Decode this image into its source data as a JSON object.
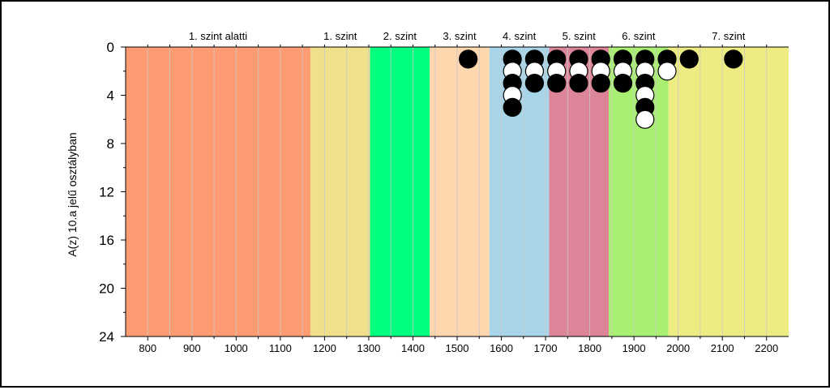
{
  "chart_data": {
    "type": "scatter",
    "ylabel": "A(z) 10.a jelű osztályban",
    "xlim": [
      750,
      2250
    ],
    "ylim": [
      0,
      24
    ],
    "y_inverted": true,
    "x_ticks": [
      "800",
      "900",
      "1000",
      "1100",
      "1200",
      "1300",
      "1400",
      "1500",
      "1600",
      "1700",
      "1800",
      "1900",
      "2000",
      "2100",
      "2200"
    ],
    "y_ticks": [
      "0",
      "4",
      "8",
      "12",
      "16",
      "20",
      "24"
    ],
    "levels": [
      {
        "label": "1. szint alatti",
        "from": 750,
        "to": 1168,
        "color": "#ff9b72"
      },
      {
        "label": "1. szint",
        "from": 1168,
        "to": 1303,
        "color": "#f0e08c"
      },
      {
        "label": "2. szint",
        "from": 1303,
        "to": 1438,
        "color": "#00ff7f"
      },
      {
        "label": "3. szint",
        "from": 1438,
        "to": 1573,
        "color": "#ffd7ae"
      },
      {
        "label": "4. szint",
        "from": 1573,
        "to": 1708,
        "color": "#a8d5e8"
      },
      {
        "label": "5. szint",
        "from": 1708,
        "to": 1843,
        "color": "#dd8598"
      },
      {
        "label": "6. szint",
        "from": 1843,
        "to": 1978,
        "color": "#a9ef72"
      },
      {
        "label": "7. szint",
        "from": 1978,
        "to": 2250,
        "color": "#ecec82"
      }
    ],
    "points": [
      {
        "x": 1525,
        "y": 1,
        "fill": "black"
      },
      {
        "x": 1625,
        "y": 1,
        "fill": "black"
      },
      {
        "x": 1625,
        "y": 2,
        "fill": "white"
      },
      {
        "x": 1625,
        "y": 3,
        "fill": "black"
      },
      {
        "x": 1625,
        "y": 4,
        "fill": "white"
      },
      {
        "x": 1625,
        "y": 5,
        "fill": "black"
      },
      {
        "x": 1675,
        "y": 1,
        "fill": "black"
      },
      {
        "x": 1675,
        "y": 2,
        "fill": "white"
      },
      {
        "x": 1675,
        "y": 3,
        "fill": "black"
      },
      {
        "x": 1725,
        "y": 1,
        "fill": "black"
      },
      {
        "x": 1725,
        "y": 2,
        "fill": "white"
      },
      {
        "x": 1725,
        "y": 3,
        "fill": "black"
      },
      {
        "x": 1775,
        "y": 1,
        "fill": "black"
      },
      {
        "x": 1775,
        "y": 2,
        "fill": "white"
      },
      {
        "x": 1775,
        "y": 3,
        "fill": "black"
      },
      {
        "x": 1825,
        "y": 1,
        "fill": "black"
      },
      {
        "x": 1825,
        "y": 2,
        "fill": "white"
      },
      {
        "x": 1825,
        "y": 3,
        "fill": "black"
      },
      {
        "x": 1875,
        "y": 1,
        "fill": "black"
      },
      {
        "x": 1875,
        "y": 2,
        "fill": "white"
      },
      {
        "x": 1875,
        "y": 3,
        "fill": "black"
      },
      {
        "x": 1925,
        "y": 1,
        "fill": "black"
      },
      {
        "x": 1925,
        "y": 2,
        "fill": "white"
      },
      {
        "x": 1925,
        "y": 3,
        "fill": "black"
      },
      {
        "x": 1925,
        "y": 4,
        "fill": "white"
      },
      {
        "x": 1925,
        "y": 5,
        "fill": "black"
      },
      {
        "x": 1925,
        "y": 6,
        "fill": "white"
      },
      {
        "x": 1975,
        "y": 1,
        "fill": "black"
      },
      {
        "x": 1975,
        "y": 2,
        "fill": "white"
      },
      {
        "x": 2025,
        "y": 1,
        "fill": "black"
      },
      {
        "x": 2125,
        "y": 1,
        "fill": "black"
      }
    ]
  }
}
